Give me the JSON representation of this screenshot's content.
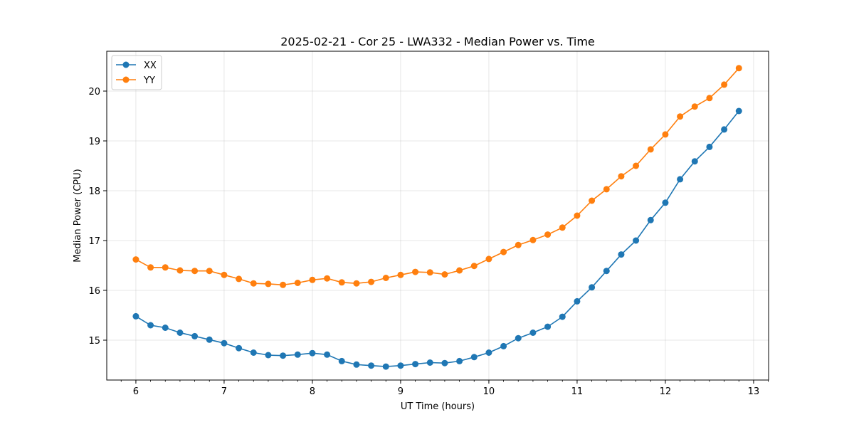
{
  "chart_data": {
    "type": "line",
    "title": "2025-02-21 - Cor 25 - LWA332 - Median Power vs. Time",
    "xlabel": "UT Time (hours)",
    "ylabel": "Median Power (CPU)",
    "xlim": [
      5.67,
      13.17
    ],
    "ylim": [
      14.2,
      20.8
    ],
    "xticks": [
      6,
      7,
      8,
      9,
      10,
      11,
      12,
      13
    ],
    "yticks": [
      15,
      16,
      17,
      18,
      19,
      20
    ],
    "grid": true,
    "legend_position": "top-left",
    "x": [
      6.0,
      6.1667,
      6.3333,
      6.5,
      6.6667,
      6.8333,
      7.0,
      7.1667,
      7.3333,
      7.5,
      7.6667,
      7.8333,
      8.0,
      8.1667,
      8.3333,
      8.5,
      8.6667,
      8.8333,
      9.0,
      9.1667,
      9.3333,
      9.5,
      9.6667,
      9.8333,
      10.0,
      10.1667,
      10.3333,
      10.5,
      10.6667,
      10.8333,
      11.0,
      11.1667,
      11.3333,
      11.5,
      11.6667,
      11.8333,
      12.0,
      12.1667,
      12.3333,
      12.5,
      12.6667,
      12.8333
    ],
    "series": [
      {
        "name": "XX",
        "color": "#1f77b4",
        "values": [
          15.48,
          15.3,
          15.25,
          15.15,
          15.08,
          15.01,
          14.94,
          14.84,
          14.75,
          14.7,
          14.69,
          14.71,
          14.74,
          14.71,
          14.58,
          14.51,
          14.49,
          14.47,
          14.49,
          14.52,
          14.55,
          14.54,
          14.58,
          14.66,
          14.75,
          14.88,
          15.04,
          15.15,
          15.27,
          15.47,
          15.78,
          16.06,
          16.39,
          16.72,
          17.0,
          17.41,
          17.76,
          18.23,
          18.59,
          18.88,
          19.23,
          19.6
        ]
      },
      {
        "name": "YY",
        "color": "#ff7f0e",
        "values": [
          16.62,
          16.46,
          16.46,
          16.4,
          16.39,
          16.39,
          16.31,
          16.23,
          16.14,
          16.13,
          16.11,
          16.15,
          16.21,
          16.24,
          16.16,
          16.14,
          16.17,
          16.25,
          16.31,
          16.37,
          16.36,
          16.32,
          16.4,
          16.49,
          16.63,
          16.77,
          16.91,
          17.01,
          17.12,
          17.26,
          17.5,
          17.8,
          18.03,
          18.29,
          18.5,
          18.83,
          19.13,
          19.49,
          19.69,
          19.86,
          20.13,
          20.46
        ]
      }
    ]
  }
}
